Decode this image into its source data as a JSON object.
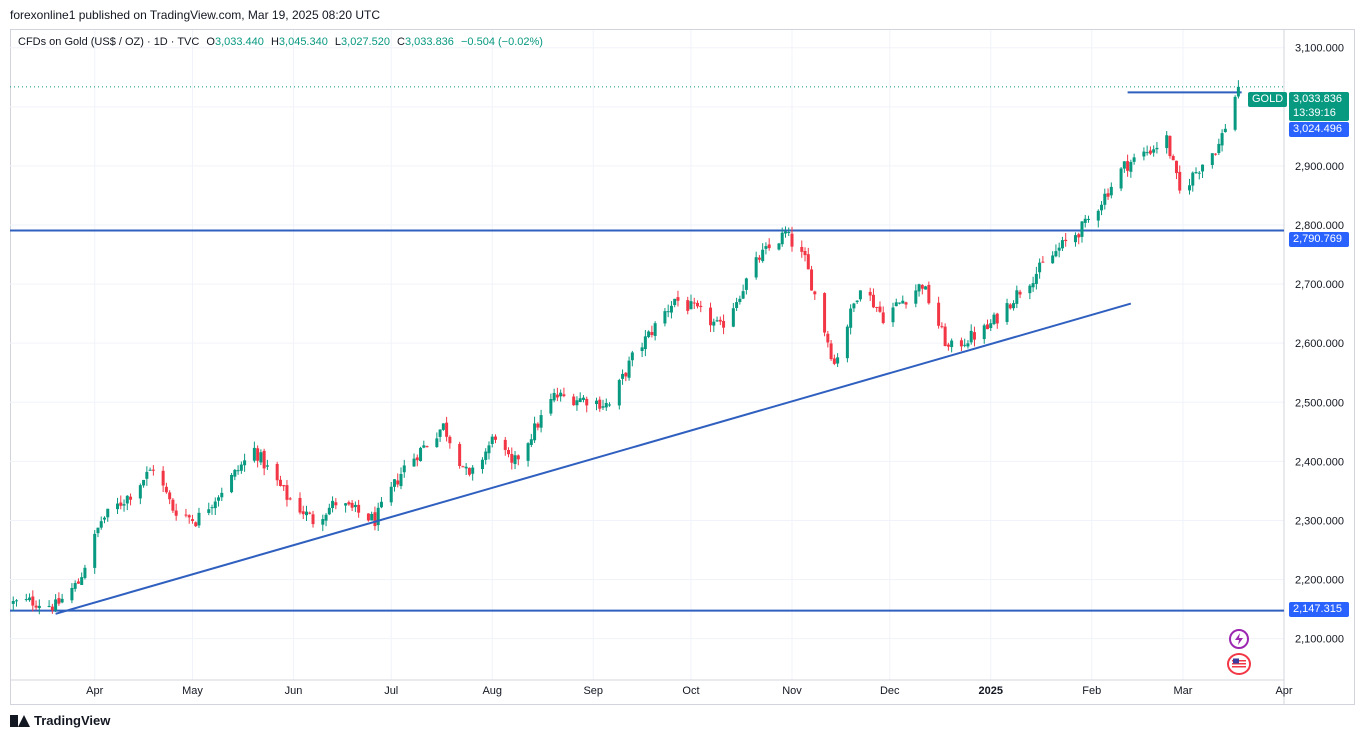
{
  "header": {
    "publisher_line": "forexonline1 published on TradingView.com, Mar 19, 2025 08:20 UTC"
  },
  "legend": {
    "symbol": "CFDs on Gold (US$ / OZ) · 1D · TVC",
    "open_label": "O",
    "open": "3,033.440",
    "high_label": "H",
    "high": "3,045.340",
    "low_label": "L",
    "low": "3,027.520",
    "close_label": "C",
    "close": "3,033.836",
    "change": "−0.504 (−0.02%)"
  },
  "price_badges": {
    "ticker": "GOLD",
    "last_price": "3,033.836",
    "countdown": "13:39:16",
    "level_1": "3,024.496",
    "level_2": "2,790.769",
    "level_3": "2,147.315"
  },
  "colors": {
    "up": "#089981",
    "down": "#f23645",
    "line": "#2962ff",
    "drawn_line": "#2f5fbf",
    "grid": "#f0f3fa",
    "axis_text": "#131722"
  },
  "footer": {
    "brand": "TradingView"
  },
  "icons": [
    "flash-icon",
    "us-flag-icon",
    "tradingview-logo-icon"
  ],
  "chart_data": {
    "type": "candlestick",
    "title": "CFDs on Gold (US$ / OZ) · 1D · TVC",
    "y_axis": {
      "ticks": [
        2100,
        2200,
        2300,
        2400,
        2500,
        2600,
        2700,
        2800,
        2900,
        3000,
        3100
      ],
      "tick_labels": [
        "2,100.000",
        "2,200.000",
        "2,300.000",
        "2,400.000",
        "2,500.000",
        "2,600.000",
        "2,700.000",
        "2,800.000",
        "2,900.000",
        "3,000.000",
        "3,100.000"
      ],
      "ylim": [
        2030,
        3130
      ]
    },
    "x_axis": {
      "labels": [
        {
          "text": "Apr",
          "date": "2024-04-01"
        },
        {
          "text": "May",
          "date": "2024-05-01"
        },
        {
          "text": "Jun",
          "date": "2024-06-01"
        },
        {
          "text": "Jul",
          "date": "2024-07-01"
        },
        {
          "text": "Aug",
          "date": "2024-08-01"
        },
        {
          "text": "Sep",
          "date": "2024-09-01"
        },
        {
          "text": "Oct",
          "date": "2024-10-01"
        },
        {
          "text": "Nov",
          "date": "2024-11-01"
        },
        {
          "text": "Dec",
          "date": "2024-12-01"
        },
        {
          "text": "2025",
          "date": "2025-01-01",
          "bold": true
        },
        {
          "text": "Feb",
          "date": "2025-02-01"
        },
        {
          "text": "Mar",
          "date": "2025-03-01"
        },
        {
          "text": "Apr",
          "date": "2025-04-01"
        }
      ],
      "range": [
        "2024-03-06",
        "2025-04-01"
      ]
    },
    "horizontal_lines": [
      {
        "value": 3024.496,
        "from": "2025-02-12",
        "to": "2025-03-19"
      },
      {
        "value": 2790.769,
        "from": "2024-03-06",
        "to": "2025-04-01"
      },
      {
        "value": 2147.315,
        "from": "2024-03-06",
        "to": "2025-04-01"
      }
    ],
    "trendline": {
      "from": {
        "date": "2024-03-20",
        "value": 2142
      },
      "to": {
        "date": "2025-02-13",
        "value": 2667
      }
    },
    "last_price_line": 3033.836,
    "anchors": [
      {
        "date": "2024-03-07",
        "close": 2160
      },
      {
        "date": "2024-03-13",
        "close": 2163
      },
      {
        "date": "2024-03-20",
        "close": 2155
      },
      {
        "date": "2024-03-27",
        "close": 2195
      },
      {
        "date": "2024-04-03",
        "close": 2300
      },
      {
        "date": "2024-04-12",
        "close": 2345
      },
      {
        "date": "2024-04-19",
        "close": 2390
      },
      {
        "date": "2024-04-25",
        "close": 2320
      },
      {
        "date": "2024-05-02",
        "close": 2300
      },
      {
        "date": "2024-05-09",
        "close": 2345
      },
      {
        "date": "2024-05-20",
        "close": 2420
      },
      {
        "date": "2024-05-30",
        "close": 2340
      },
      {
        "date": "2024-06-07",
        "close": 2300
      },
      {
        "date": "2024-06-14",
        "close": 2330
      },
      {
        "date": "2024-06-26",
        "close": 2300
      },
      {
        "date": "2024-07-05",
        "close": 2390
      },
      {
        "date": "2024-07-17",
        "close": 2460
      },
      {
        "date": "2024-07-25",
        "close": 2370
      },
      {
        "date": "2024-08-02",
        "close": 2445
      },
      {
        "date": "2024-08-07",
        "close": 2390
      },
      {
        "date": "2024-08-20",
        "close": 2510
      },
      {
        "date": "2024-08-30",
        "close": 2505
      },
      {
        "date": "2024-09-06",
        "close": 2495
      },
      {
        "date": "2024-09-13",
        "close": 2575
      },
      {
        "date": "2024-09-26",
        "close": 2675
      },
      {
        "date": "2024-10-04",
        "close": 2650
      },
      {
        "date": "2024-10-10",
        "close": 2625
      },
      {
        "date": "2024-10-22",
        "close": 2745
      },
      {
        "date": "2024-10-30",
        "close": 2785
      },
      {
        "date": "2024-11-05",
        "close": 2740
      },
      {
        "date": "2024-11-14",
        "close": 2565
      },
      {
        "date": "2024-11-22",
        "close": 2700
      },
      {
        "date": "2024-11-29",
        "close": 2645
      },
      {
        "date": "2024-12-11",
        "close": 2700
      },
      {
        "date": "2024-12-19",
        "close": 2590
      },
      {
        "date": "2024-12-31",
        "close": 2625
      },
      {
        "date": "2025-01-10",
        "close": 2690
      },
      {
        "date": "2025-01-22",
        "close": 2760
      },
      {
        "date": "2025-01-30",
        "close": 2800
      },
      {
        "date": "2025-02-11",
        "close": 2900
      },
      {
        "date": "2025-02-24",
        "close": 2945
      },
      {
        "date": "2025-02-28",
        "close": 2855
      },
      {
        "date": "2025-03-07",
        "close": 2905
      },
      {
        "date": "2025-03-12",
        "close": 2935
      },
      {
        "date": "2025-03-18",
        "close": 3033.836
      }
    ]
  }
}
